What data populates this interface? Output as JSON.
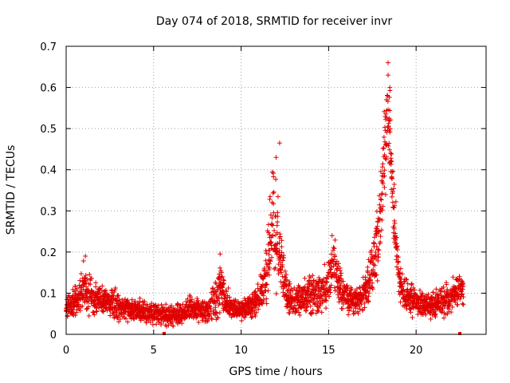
{
  "chart_data": {
    "type": "scatter",
    "title": "Day 074 of 2018, SRMTID for receiver invr",
    "xlabel": "GPS time / hours",
    "ylabel": "SRMTID / TECUs",
    "xlim": [
      0,
      24
    ],
    "ylim": [
      0,
      0.7
    ],
    "xticks": [
      "0",
      "5",
      "10",
      "15",
      "20"
    ],
    "yticks": [
      "0",
      "0.1",
      "0.2",
      "0.3",
      "0.4",
      "0.5",
      "0.6",
      "0.7"
    ],
    "grid": true,
    "marker": "+",
    "color": "#e00000",
    "series": [
      {
        "name": "SRMTID",
        "profile": {
          "hours": [
            0,
            0.3,
            0.6,
            0.9,
            1.1,
            1.3,
            1.6,
            2.0,
            2.5,
            3.0,
            3.5,
            4.0,
            4.5,
            5.0,
            5.5,
            6.0,
            6.5,
            7.0,
            7.5,
            8.0,
            8.5,
            8.8,
            9.2,
            9.6,
            10.0,
            10.5,
            11.0,
            11.3,
            11.6,
            11.8,
            12.0,
            12.2,
            12.4,
            12.6,
            12.8,
            13.0,
            13.5,
            14.0,
            14.5,
            15.0,
            15.3,
            15.6,
            16.0,
            16.5,
            17.0,
            17.4,
            17.7,
            18.0,
            18.2,
            18.4,
            18.5,
            18.6,
            18.8,
            19.0,
            19.3,
            19.6,
            20.0,
            20.5,
            21.0,
            21.5,
            22.0,
            22.5,
            22.7
          ],
          "mean": [
            0.06,
            0.07,
            0.08,
            0.1,
            0.12,
            0.1,
            0.09,
            0.08,
            0.075,
            0.07,
            0.06,
            0.06,
            0.055,
            0.05,
            0.05,
            0.045,
            0.05,
            0.06,
            0.06,
            0.055,
            0.08,
            0.12,
            0.07,
            0.06,
            0.06,
            0.07,
            0.09,
            0.12,
            0.2,
            0.28,
            0.25,
            0.2,
            0.15,
            0.1,
            0.09,
            0.08,
            0.09,
            0.1,
            0.1,
            0.12,
            0.17,
            0.12,
            0.09,
            0.08,
            0.1,
            0.14,
            0.2,
            0.3,
            0.45,
            0.52,
            0.48,
            0.38,
            0.25,
            0.15,
            0.1,
            0.09,
            0.08,
            0.07,
            0.07,
            0.08,
            0.09,
            0.11,
            0.1
          ],
          "spread": [
            0.02,
            0.025,
            0.03,
            0.04,
            0.05,
            0.04,
            0.03,
            0.025,
            0.025,
            0.03,
            0.02,
            0.02,
            0.02,
            0.02,
            0.02,
            0.02,
            0.02,
            0.025,
            0.025,
            0.02,
            0.04,
            0.05,
            0.03,
            0.02,
            0.02,
            0.025,
            0.035,
            0.05,
            0.08,
            0.1,
            0.1,
            0.06,
            0.05,
            0.04,
            0.03,
            0.03,
            0.03,
            0.035,
            0.04,
            0.05,
            0.05,
            0.04,
            0.03,
            0.025,
            0.035,
            0.05,
            0.07,
            0.1,
            0.12,
            0.1,
            0.1,
            0.08,
            0.07,
            0.04,
            0.03,
            0.03,
            0.025,
            0.025,
            0.025,
            0.03,
            0.03,
            0.03,
            0.03
          ]
        },
        "peaks": [
          {
            "x": 12.2,
            "y": 0.465
          },
          {
            "x": 12.0,
            "y": 0.43
          },
          {
            "x": 18.4,
            "y": 0.66
          },
          {
            "x": 18.4,
            "y": 0.63
          },
          {
            "x": 18.5,
            "y": 0.6
          },
          {
            "x": 18.3,
            "y": 0.57
          },
          {
            "x": 8.8,
            "y": 0.195
          },
          {
            "x": 1.1,
            "y": 0.19
          },
          {
            "x": 15.2,
            "y": 0.24
          }
        ],
        "zero_points": [
          {
            "x": 5.6,
            "y": 0.0
          },
          {
            "x": 22.5,
            "y": 0.0
          }
        ]
      }
    ]
  }
}
